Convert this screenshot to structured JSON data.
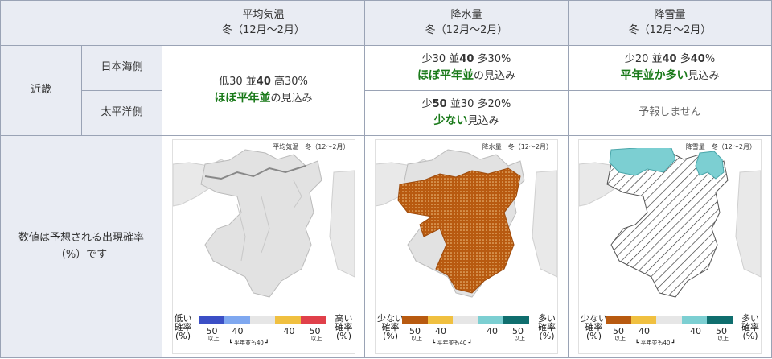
{
  "header": {
    "col1": {
      "title": "平均気温",
      "period": "冬（12月〜2月）"
    },
    "col2": {
      "title": "降水量",
      "period": "冬（12月〜2月）"
    },
    "col3": {
      "title": "降雪量",
      "period": "冬（12月〜2月）"
    }
  },
  "region": "近畿",
  "sides": {
    "sea": "日本海側",
    "pacific": "太平洋側"
  },
  "temp": {
    "prob_low": "低30 並",
    "prob_mid": "40",
    "prob_high": " 高30%",
    "verdict": "ほぼ平年並",
    "suffix": "の見込み"
  },
  "precip_sea": {
    "p1": "少30 並",
    "p2": "40",
    "p3": " 多30%",
    "verdict": "ほぼ平年並",
    "suffix": "の見込み"
  },
  "precip_pac": {
    "p1": "少",
    "p2": "50",
    "p3": " 並30 多20%",
    "verdict": "少ない",
    "suffix": "見込み"
  },
  "snow_sea": {
    "p1": "少20 並",
    "p2": "40",
    "p3": " 多",
    "p4": "40",
    "p5": "%",
    "verdict": "平年並か多い",
    "suffix": "見込み"
  },
  "snow_pac": {
    "text": "予報しません"
  },
  "note": {
    "line1": "数値は予想される出現確率",
    "line2": "（%）です"
  },
  "maps": {
    "temp": {
      "title": "平均気温　冬（12〜2月）",
      "lo1": "低い",
      "lo2": "確率",
      "lo3": "(%)",
      "hi1": "高い",
      "hi2": "確率",
      "hi3": "(%)",
      "colors": [
        "#3b4fc6",
        "#7fa8f0",
        "#e6e6e6",
        "#f0c040",
        "#e0404a"
      ]
    },
    "precip": {
      "title": "降水量　冬（12〜2月）",
      "lo1": "少ない",
      "lo2": "確率",
      "lo3": "(%)",
      "hi1": "多い",
      "hi2": "確率",
      "hi3": "(%)",
      "colors": [
        "#b85a10",
        "#f0c040",
        "#e6e6e6",
        "#7ccfd2",
        "#0f6e6e"
      ]
    },
    "snow": {
      "title": "降雪量　冬（12〜2月）",
      "lo1": "少ない",
      "lo2": "確率",
      "lo3": "(%)",
      "hi1": "多い",
      "hi2": "確率",
      "hi3": "(%)",
      "colors": [
        "#b85a10",
        "#f0c040",
        "#e6e6e6",
        "#7ccfd2",
        "#0f6e6e"
      ]
    },
    "n50": "50",
    "n40": "40",
    "ijou": "以上",
    "mid": "┗ 平年並も40 ┛"
  }
}
